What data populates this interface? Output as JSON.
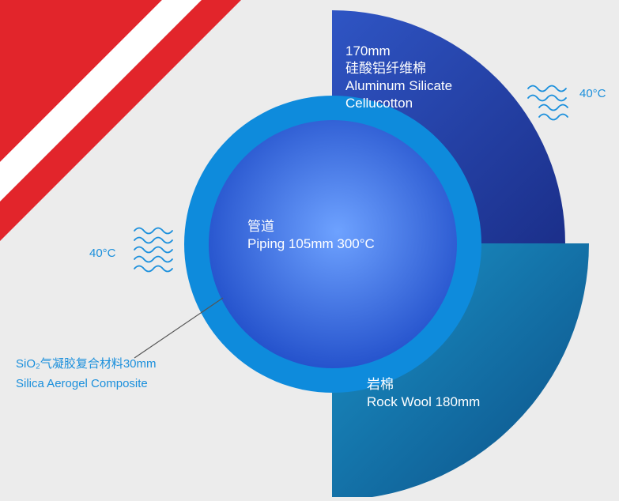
{
  "colors": {
    "background": "#ececec",
    "stripe_red": "#e2252b",
    "stripe_white": "#ffffff",
    "aluminum_outer": "#1b2f8a",
    "aluminum_inner": "#2f55c4",
    "rock_wool_outer": "#0c4f86",
    "rock_wool_inner": "#1b93c8",
    "aerogel_ring": "#0e8bdc",
    "pipe_center": "#6ea2ff",
    "pipe_edge": "#1f4cc8",
    "label_blue": "#1a8fdc"
  },
  "layers": {
    "aluminum_silicate": {
      "thickness": "170mm",
      "name_cn": "硅酸铝纤维棉",
      "name_en_line1": "Aluminum Silicate",
      "name_en_line2": "Cellucotton"
    },
    "rock_wool": {
      "name_cn": "岩棉",
      "name_en": "Rock Wool 180mm"
    },
    "aerogel": {
      "name_cn": "SiO₂气凝胶复合材料30mm",
      "name_en": "Silica Aerogel Composite"
    },
    "piping": {
      "name_cn": "管道",
      "name_en": "Piping 105mm 300°C"
    }
  },
  "temperatures": {
    "right": "40°C",
    "left": "40°C"
  }
}
